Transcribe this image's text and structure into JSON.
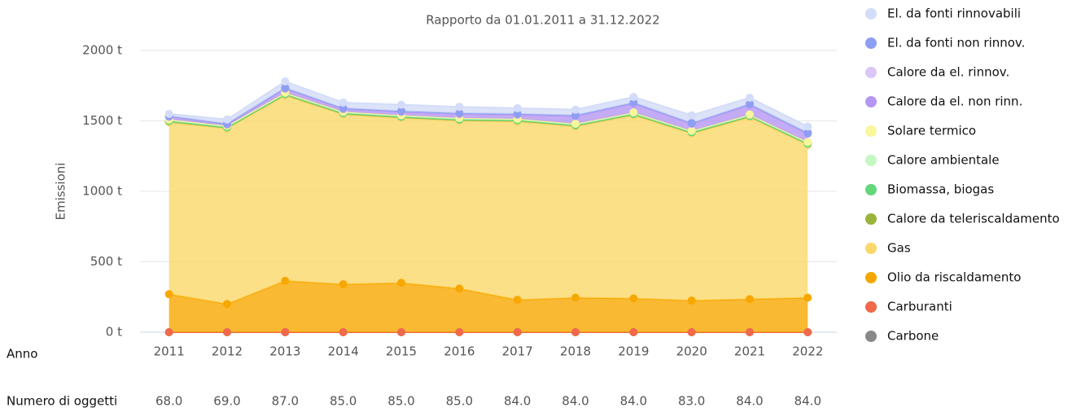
{
  "chart_data": {
    "type": "stacked_area",
    "title": "Rapporto da 01.01.2011 a 31.12.2022",
    "ylabel": "Emissioni",
    "categories": [
      "2011",
      "2012",
      "2013",
      "2014",
      "2015",
      "2016",
      "2017",
      "2018",
      "2019",
      "2020",
      "2021",
      "2022"
    ],
    "ylim": [
      0,
      2000
    ],
    "yticks": [
      {
        "value": 0,
        "label": "0 t"
      },
      {
        "value": 500,
        "label": "500 t"
      },
      {
        "value": 1000,
        "label": "1000 t"
      },
      {
        "value": 1500,
        "label": "1500 t"
      },
      {
        "value": 2000,
        "label": "2000 t"
      }
    ],
    "grid": true,
    "legend": "right",
    "series": [
      {
        "name": "El. da fonti rinnovabili",
        "color": "#d3dcf8",
        "values": [
          15,
          30,
          45,
          40,
          45,
          45,
          40,
          40,
          40,
          55,
          45,
          45
        ]
      },
      {
        "name": "El. da fonti non rinnov.",
        "color": "#8e9ef2",
        "values": [
          0,
          0,
          0,
          0,
          0,
          0,
          0,
          0,
          0,
          0,
          0,
          0
        ]
      },
      {
        "name": "Calore da el. rinnov.",
        "color": "#dac6f7",
        "values": [
          5,
          5,
          5,
          5,
          5,
          5,
          5,
          5,
          5,
          5,
          5,
          5
        ]
      },
      {
        "name": "Calore da el. non rinn.",
        "color": "#b596f3",
        "values": [
          20,
          10,
          30,
          20,
          25,
          30,
          30,
          55,
          65,
          50,
          70,
          60
        ]
      },
      {
        "name": "Solare termico",
        "color": "#f8f79c",
        "values": [
          0,
          0,
          0,
          0,
          0,
          0,
          0,
          0,
          0,
          0,
          0,
          0
        ]
      },
      {
        "name": "Calore ambientale",
        "color": "#c5f7c5",
        "values": [
          10,
          10,
          10,
          10,
          10,
          10,
          10,
          10,
          10,
          10,
          10,
          10
        ]
      },
      {
        "name": "Biomassa, biogas",
        "color": "#63d77a",
        "values": [
          0,
          0,
          0,
          0,
          0,
          0,
          0,
          0,
          0,
          0,
          0,
          0
        ]
      },
      {
        "name": "Calore da teleriscaldamento",
        "color": "#98b53a",
        "values": [
          10,
          10,
          10,
          10,
          10,
          10,
          10,
          10,
          10,
          10,
          10,
          10
        ]
      },
      {
        "name": "Gas",
        "color": "#fbd86a",
        "values": [
          1220,
          1245,
          1315,
          1205,
          1170,
          1190,
          1265,
          1215,
          1300,
          1185,
          1290,
          1085
        ]
      },
      {
        "name": "Olio da riscaldamento",
        "color": "#f7a800",
        "values": [
          270,
          200,
          365,
          340,
          350,
          310,
          230,
          245,
          240,
          225,
          235,
          245
        ]
      },
      {
        "name": "Carburanti",
        "color": "#f0694a",
        "values": [
          0,
          0,
          0,
          0,
          0,
          0,
          0,
          0,
          0,
          0,
          0,
          0
        ]
      },
      {
        "name": "Carbone",
        "color": "#888888",
        "values": [
          0,
          0,
          0,
          0,
          0,
          0,
          0,
          0,
          0,
          0,
          0,
          0
        ]
      }
    ]
  },
  "table": {
    "row_labels": [
      "Anno",
      "Numero di oggetti"
    ],
    "objects": [
      "68.0",
      "69.0",
      "87.0",
      "85.0",
      "85.0",
      "85.0",
      "84.0",
      "84.0",
      "84.0",
      "83.0",
      "84.0",
      "84.0"
    ]
  }
}
